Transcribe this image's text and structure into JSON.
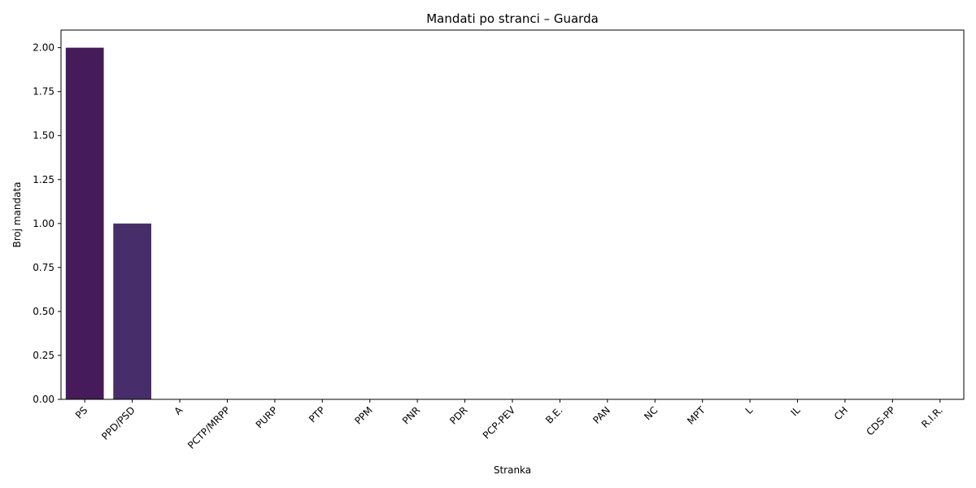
{
  "chart_data": {
    "type": "bar",
    "title": "Mandati po stranci – Guarda",
    "xlabel": "Stranka",
    "ylabel": "Broj mandata",
    "categories": [
      "PS",
      "PPD/PSD",
      "A",
      "PCTP/MRPP",
      "PURP",
      "PTP",
      "PPM",
      "PNR",
      "PDR",
      "PCP-PEV",
      "B.E.",
      "PAN",
      "NC",
      "MPT",
      "L",
      "IL",
      "CH",
      "CDS-PP",
      "R.I.R."
    ],
    "values": [
      2,
      1,
      0,
      0,
      0,
      0,
      0,
      0,
      0,
      0,
      0,
      0,
      0,
      0,
      0,
      0,
      0,
      0,
      0
    ],
    "bar_colors": [
      "#461b5a",
      "#482d6b",
      "#453b75",
      "#3f4d7f",
      "#395b86",
      "#33698c",
      "#2d778e",
      "#28838e",
      "#24928d",
      "#229f89",
      "#27ad83",
      "#3bb97b",
      "#56c667",
      "#6fd05a",
      "#8cd646",
      "#abdd33",
      "#c8e229",
      "#e0e32b",
      "#f0e62c"
    ],
    "ylim": [
      0,
      2.1
    ],
    "yticks": [
      0,
      0.25,
      0.5,
      0.75,
      1.0,
      1.25,
      1.5,
      1.75,
      2.0
    ],
    "ytick_labels": [
      "0.00",
      "0.25",
      "0.50",
      "0.75",
      "1.00",
      "1.25",
      "1.50",
      "1.75",
      "2.00"
    ],
    "grid": false,
    "legend": "none"
  }
}
